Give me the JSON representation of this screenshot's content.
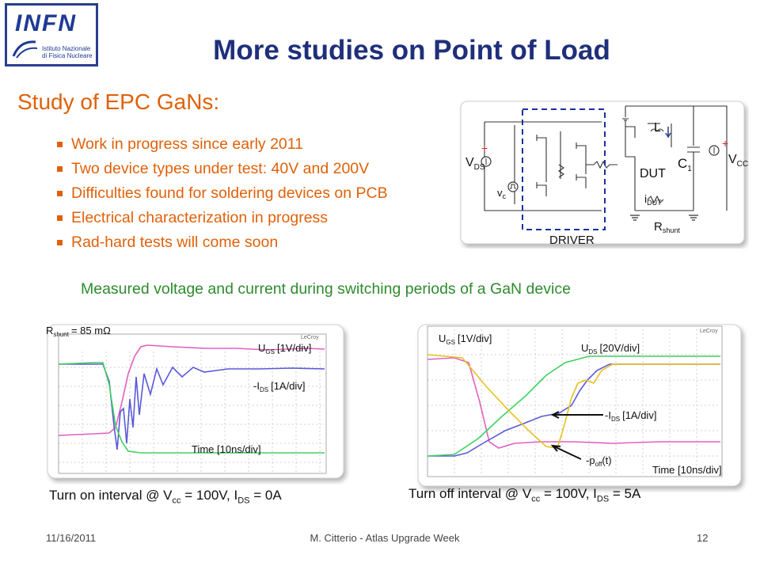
{
  "logo": {
    "name": "INFN",
    "sub1": "Istituto Nazionale",
    "sub2": "di Fisica Nucleare"
  },
  "title": "More studies on Point of Load",
  "heading": "Study of EPC GaNs:",
  "bullets": [
    "Work in progress since early 2011",
    "Two device types under test: 40V and 200V",
    "Difficulties found for soldering devices on PCB",
    "Electrical characterization in progress",
    "Rad-hard tests will come soon"
  ],
  "circuit": {
    "vds_label": "V",
    "vds_sub": "DS",
    "vcc_label": "V",
    "vcc_sub": "CC",
    "vc_label": "v",
    "vc_sub": "c",
    "l_label": "L",
    "c_label": "C",
    "c_sub": "1",
    "dut_label": "DUT",
    "idut_label": "i",
    "idut_sub": "DUT",
    "rshunt_label": "R",
    "rshunt_sub": "shunt",
    "driver_label": "DRIVER",
    "plus_sign": "+"
  },
  "caption": "Measured voltage and current during switching periods of a GaN device",
  "scope_left": {
    "brand": "LeCroy",
    "rshunt_label": "R",
    "rshunt_sub": "shunt",
    "rshunt_value": "= 85 mΩ",
    "ugs_label": "U",
    "ugs_sub": "GS",
    "ugs_scale": "[1V/div]",
    "ids_label": "-I",
    "ids_sub": "DS",
    "ids_scale": "[1A/div]",
    "time_label": "Time [10ns/div]",
    "caption_a": "Turn on interval @ V",
    "caption_sub1": "cc",
    "caption_b": " = 100V, I",
    "caption_sub2": "DS",
    "caption_c": " = 0A"
  },
  "scope_right": {
    "brand": "LeCroy",
    "ugs_label": "U",
    "ugs_sub": "GS",
    "ugs_scale": "[1V/div]",
    "uds_label": "U",
    "uds_sub": "DS",
    "uds_scale": "[20V/div]",
    "ids_label": "-I",
    "ids_sub": "DS",
    "ids_scale": "[1A/div]",
    "poff_label": "-p",
    "poff_sub": "off",
    "poff_arg": "(t)",
    "time_label": "Time [10ns/div]",
    "caption_a": "Turn off interval @ V",
    "caption_sub1": "cc",
    "caption_b": " = 100V, I",
    "caption_sub2": "DS",
    "caption_c": " = 5A"
  },
  "footer": {
    "date": "11/16/2011",
    "author": "M. Citterio - Atlas Upgrade Week",
    "page": "12"
  },
  "colors": {
    "title": "#1f2f7a",
    "accent_orange": "#e0610a",
    "caption_green": "#2e8b2e",
    "trace_pink": "#e060c0",
    "trace_blue": "#5a5ad8",
    "trace_green": "#40d060",
    "trace_yellow": "#e8c020"
  }
}
